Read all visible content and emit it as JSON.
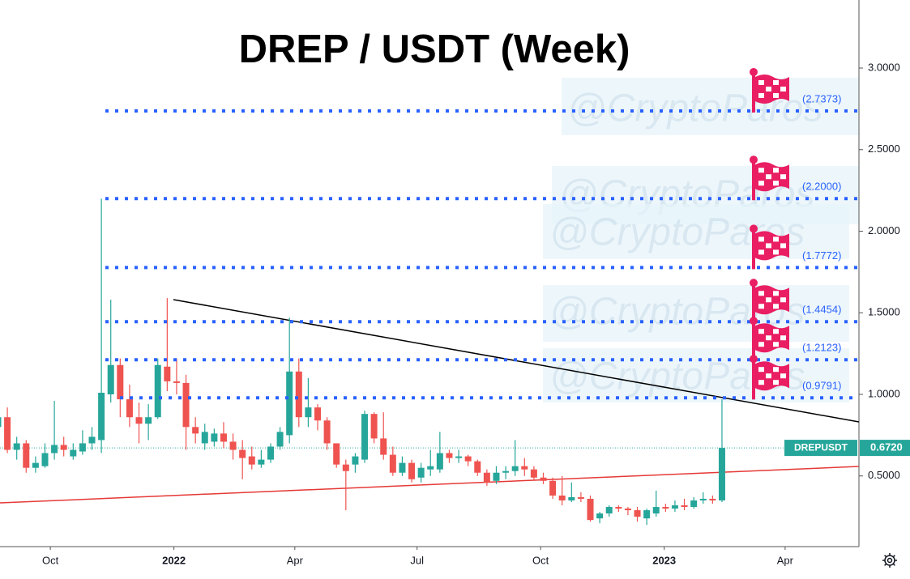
{
  "chart_data": {
    "type": "candlestick",
    "title": "DREP / USDT (Week)",
    "watermark": "@CryptoParos",
    "up_color": "#26a69a",
    "down_color": "#ef5350",
    "xlim": [
      "2021-08",
      "2023-06"
    ],
    "xticks": [
      {
        "value": "2021-10",
        "label": "Oct"
      },
      {
        "value": "2022-01",
        "label": "2022"
      },
      {
        "value": "2022-04",
        "label": "Apr"
      },
      {
        "value": "2022-07",
        "label": "Jul"
      },
      {
        "value": "2022-10",
        "label": "Oct"
      },
      {
        "value": "2023-01",
        "label": "2023"
      },
      {
        "value": "2023-04",
        "label": "Apr"
      }
    ],
    "ylim": [
      0.067,
      3.417
    ],
    "yticks": [
      {
        "value": 0.5,
        "label": "0.5000"
      },
      {
        "value": 1,
        "label": "1.0000"
      },
      {
        "value": 1.5,
        "label": "1.5000"
      },
      {
        "value": 2,
        "label": "2.0000"
      },
      {
        "value": 2.5,
        "label": "2.5000"
      },
      {
        "value": 3,
        "label": "3.0000"
      }
    ],
    "grid": false,
    "x": [
      "2021-08-23",
      "2021-08-30",
      "2021-09-06",
      "2021-09-13",
      "2021-09-20",
      "2021-09-27",
      "2021-10-04",
      "2021-10-11",
      "2021-10-18",
      "2021-10-25",
      "2021-11-01",
      "2021-11-08",
      "2021-11-15",
      "2021-11-22",
      "2021-11-29",
      "2021-12-06",
      "2021-12-13",
      "2021-12-20",
      "2021-12-27",
      "2022-01-03",
      "2022-01-10",
      "2022-01-17",
      "2022-01-24",
      "2022-01-31",
      "2022-02-07",
      "2022-02-14",
      "2022-02-21",
      "2022-02-28",
      "2022-03-07",
      "2022-03-14",
      "2022-03-21",
      "2022-03-28",
      "2022-04-04",
      "2022-04-11",
      "2022-04-18",
      "2022-04-25",
      "2022-05-02",
      "2022-05-09",
      "2022-05-16",
      "2022-05-23",
      "2022-05-30",
      "2022-06-06",
      "2022-06-13",
      "2022-06-20",
      "2022-06-27",
      "2022-07-04",
      "2022-07-11",
      "2022-07-18",
      "2022-07-25",
      "2022-08-01",
      "2022-08-08",
      "2022-08-15",
      "2022-08-22",
      "2022-08-29",
      "2022-09-05",
      "2022-09-12",
      "2022-09-19",
      "2022-09-26",
      "2022-10-03",
      "2022-10-10",
      "2022-10-17",
      "2022-10-24",
      "2022-10-31",
      "2022-11-07",
      "2022-11-14",
      "2022-11-21",
      "2022-11-28",
      "2022-12-05",
      "2022-12-12",
      "2022-12-19",
      "2022-12-26",
      "2023-01-02",
      "2023-01-09",
      "2023-01-16",
      "2023-01-23",
      "2023-01-30",
      "2023-02-06",
      "2023-02-13"
    ],
    "open": [
      0.8,
      0.86,
      0.66,
      0.7,
      0.55,
      0.56,
      0.64,
      0.69,
      0.62,
      0.65,
      0.7,
      0.72,
      1.0,
      1.18,
      0.97,
      0.86,
      0.82,
      0.86,
      1.17,
      1.08,
      1.07,
      0.8,
      0.7,
      0.71,
      0.76,
      0.71,
      0.66,
      0.62,
      0.57,
      0.6,
      0.68,
      0.75,
      1.14,
      0.86,
      0.92,
      0.84,
      0.7,
      0.57,
      0.57,
      0.6,
      0.88,
      0.73,
      0.63,
      0.52,
      0.58,
      0.49,
      0.54,
      0.54,
      0.64,
      0.61,
      0.62,
      0.59,
      0.52,
      0.47,
      0.52,
      0.53,
      0.56,
      0.54,
      0.49,
      0.47,
      0.38,
      0.35,
      0.37,
      0.36,
      0.24,
      0.27,
      0.31,
      0.3,
      0.29,
      0.24,
      0.27,
      0.31,
      0.3,
      0.32,
      0.31,
      0.35,
      0.36,
      0.35
    ],
    "high": [
      0.88,
      0.92,
      0.74,
      0.72,
      0.62,
      0.7,
      0.96,
      0.74,
      0.7,
      0.78,
      0.8,
      2.2,
      1.58,
      1.22,
      1.06,
      0.95,
      0.94,
      1.22,
      1.59,
      1.22,
      1.12,
      0.86,
      0.82,
      0.79,
      0.83,
      0.76,
      0.72,
      0.68,
      0.66,
      0.7,
      0.8,
      1.47,
      1.22,
      1.1,
      0.94,
      0.86,
      0.7,
      0.6,
      0.64,
      0.9,
      0.89,
      0.89,
      0.68,
      0.62,
      0.6,
      0.58,
      0.66,
      0.77,
      0.66,
      0.66,
      0.63,
      0.6,
      0.54,
      0.56,
      0.56,
      0.72,
      0.61,
      0.56,
      0.52,
      0.49,
      0.5,
      0.46,
      0.4,
      0.38,
      0.28,
      0.32,
      0.32,
      0.31,
      0.31,
      0.3,
      0.41,
      0.33,
      0.35,
      0.36,
      0.37,
      0.4,
      0.38,
      0.97
    ],
    "low": [
      0.78,
      0.64,
      0.6,
      0.52,
      0.52,
      0.55,
      0.6,
      0.62,
      0.6,
      0.63,
      0.66,
      0.64,
      0.95,
      0.86,
      0.8,
      0.7,
      0.72,
      0.85,
      1.02,
      1.0,
      0.66,
      0.7,
      0.66,
      0.68,
      0.67,
      0.6,
      0.48,
      0.54,
      0.55,
      0.58,
      0.66,
      0.7,
      0.8,
      0.8,
      0.78,
      0.66,
      0.55,
      0.29,
      0.52,
      0.58,
      0.7,
      0.6,
      0.5,
      0.5,
      0.46,
      0.46,
      0.5,
      0.52,
      0.58,
      0.58,
      0.56,
      0.5,
      0.44,
      0.45,
      0.48,
      0.5,
      0.5,
      0.47,
      0.45,
      0.36,
      0.32,
      0.34,
      0.34,
      0.22,
      0.21,
      0.25,
      0.28,
      0.26,
      0.22,
      0.2,
      0.25,
      0.28,
      0.28,
      0.29,
      0.3,
      0.33,
      0.33,
      0.34
    ],
    "close": [
      0.86,
      0.66,
      0.7,
      0.55,
      0.58,
      0.64,
      0.69,
      0.66,
      0.66,
      0.7,
      0.74,
      1.01,
      1.18,
      0.97,
      0.86,
      0.82,
      0.86,
      1.18,
      1.08,
      1.07,
      0.8,
      0.76,
      0.77,
      0.76,
      0.71,
      0.66,
      0.61,
      0.57,
      0.6,
      0.68,
      0.77,
      1.14,
      0.86,
      0.92,
      0.84,
      0.7,
      0.57,
      0.53,
      0.62,
      0.88,
      0.73,
      0.63,
      0.52,
      0.58,
      0.48,
      0.55,
      0.56,
      0.64,
      0.61,
      0.62,
      0.59,
      0.52,
      0.46,
      0.52,
      0.53,
      0.56,
      0.54,
      0.49,
      0.47,
      0.38,
      0.35,
      0.37,
      0.36,
      0.23,
      0.27,
      0.31,
      0.3,
      0.29,
      0.25,
      0.29,
      0.31,
      0.3,
      0.32,
      0.31,
      0.35,
      0.36,
      0.35,
      0.672
    ],
    "levels": [
      {
        "value": 2.7373,
        "label": "(2.7373)"
      },
      {
        "value": 2.2,
        "label": "(2.2000)"
      },
      {
        "value": 1.7772,
        "label": "(1.7772)"
      },
      {
        "value": 1.4454,
        "label": "(1.4454)"
      },
      {
        "value": 1.2123,
        "label": "(1.2123)"
      },
      {
        "value": 0.9791,
        "label": "(0.9791)"
      }
    ],
    "level_color": "#2962ff",
    "last_price": {
      "symbol": "DREPUSDT",
      "value": 0.672,
      "label": "0.6720"
    }
  }
}
